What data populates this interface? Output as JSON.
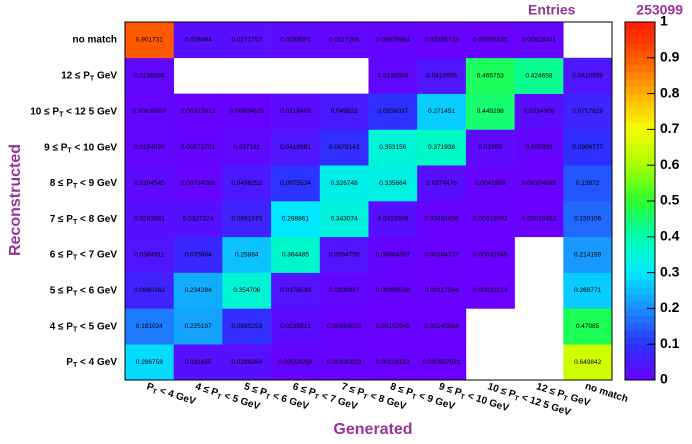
{
  "chart_data": {
    "type": "heatmap",
    "entries_label": "Entries",
    "entries": 253099,
    "x_title": "Generated",
    "y_title": "Reconstructed",
    "x_categories": [
      "PT < 4 GeV",
      "4 ≤ PT < 5 GeV",
      "5 ≤ PT < 6 GeV",
      "6 ≤ PT < 7 GeV",
      "7 ≤ PT < 8 GeV",
      "8 ≤ PT < 9 GeV",
      "9 ≤ PT < 10 GeV",
      "10 ≤ PT < 12 5 GeV",
      "12 ≤ PT GeV",
      "no match"
    ],
    "y_categories": [
      "PT < 4 GeV",
      "4 ≤ PT < 5 GeV",
      "5 ≤ PT < 6 GeV",
      "6 ≤ PT < 7 GeV",
      "7 ≤ PT < 8 GeV",
      "8 ≤ PT < 9 GeV",
      "9 ≤ PT < 10 GeV",
      "10 ≤ PT < 12 5 GeV",
      "12 ≤ PT GeV",
      "no match"
    ],
    "values": [
      [
        0.286758,
        0.031655,
        0.0298264,
        0.00559258,
        0.00330829,
        0.00116153,
        0.000827071,
        null,
        null,
        0.649842
      ],
      [
        0.181024,
        0.225197,
        0.0895253,
        0.0235812,
        0.00684022,
        0.00152948,
        0.00145664,
        null,
        null,
        0.47085
      ],
      [
        0.0680362,
        0.234284,
        0.354706,
        0.0378539,
        0.0108887,
        0.00395598,
        0.00117564,
        0.00032513,
        null,
        0.268771
      ],
      [
        0.0384911,
        0.075884,
        0.25884,
        0.364485,
        0.0394755,
        0.00864397,
        0.00164727,
        0.00032945,
        null,
        0.214199
      ],
      [
        0.0283681,
        0.0327324,
        0.0681973,
        0.298861,
        0.343074,
        0.0315939,
        0.00464896,
        0.00315093,
        0.00028463,
        0.159106
      ],
      [
        0.0204545,
        0.00734266,
        0.0496252,
        0.0975524,
        0.326748,
        0.335664,
        0.0274476,
        0.0041958,
        0.00104895,
        0.13972
      ],
      [
        0.0104895,
        0.00572701,
        0.017181,
        0.0419981,
        0.0878142,
        0.353156,
        0.371938,
        0.01909,
        0.005939,
        0.0906777
      ],
      [
        0.00935037,
        0.00312812,
        0.00624625,
        0.0218409,
        0.049922,
        0.0936037,
        0.271451,
        0.449298,
        0.0234009,
        0.0717629
      ],
      [
        0.0136986,
        null,
        null,
        null,
        null,
        0.0136986,
        0.0410959,
        0.465753,
        0.424658,
        0.0410959
      ],
      [
        0.901731,
        0.028484,
        0.0271757,
        0.0188091,
        0.0117296,
        0.00875984,
        0.00385728,
        0.00265535,
        0.00818341,
        null
      ]
    ],
    "zlim": [
      0,
      1
    ],
    "zticks": [
      0,
      0.1,
      0.2,
      0.3,
      0.4,
      0.5,
      0.6,
      0.7,
      0.8,
      0.9,
      1
    ],
    "colorscale": [
      "#6a00ff",
      "#2a33ff",
      "#1b8cff",
      "#00e8ff",
      "#00ffb0",
      "#2aff30",
      "#a8ff00",
      "#f4ff00",
      "#ffb000",
      "#ff5a00",
      "#ff1a00"
    ],
    "title_color": "#993399"
  }
}
